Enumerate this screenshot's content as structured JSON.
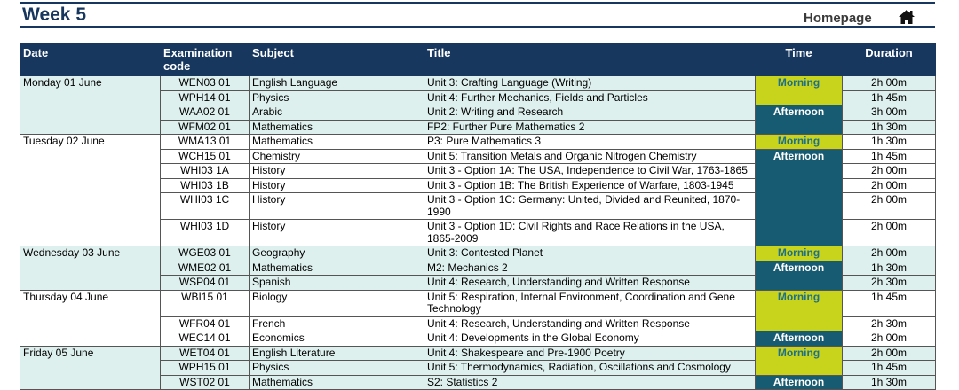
{
  "header": {
    "title": "Week 5",
    "link": "Homepage"
  },
  "table": {
    "columns": [
      "Date",
      "Examination code",
      "Subject",
      "Title",
      "Time",
      "Duration"
    ],
    "days": [
      {
        "date": "Monday 01 June",
        "sessions": [
          {
            "time": "Morning",
            "exams": [
              {
                "code": "WEN03 01",
                "subject": "English Language",
                "title": "Unit 3: Crafting Language (Writing)",
                "duration": "2h 00m"
              },
              {
                "code": "WPH14 01",
                "subject": "Physics",
                "title": "Unit 4: Further Mechanics, Fields and Particles",
                "duration": "1h 45m"
              }
            ]
          },
          {
            "time": "Afternoon",
            "exams": [
              {
                "code": "WAA02 01",
                "subject": "Arabic",
                "title": "Unit 2: Writing and Research",
                "duration": "3h 00m"
              },
              {
                "code": "WFM02 01",
                "subject": "Mathematics",
                "title": "FP2: Further Pure Mathematics 2",
                "duration": "1h 30m"
              }
            ]
          }
        ]
      },
      {
        "date": "Tuesday 02 June",
        "sessions": [
          {
            "time": "Morning",
            "exams": [
              {
                "code": "WMA13 01",
                "subject": "Mathematics",
                "title": "P3: Pure Mathematics 3",
                "duration": "1h 30m"
              }
            ]
          },
          {
            "time": "Afternoon",
            "exams": [
              {
                "code": "WCH15 01",
                "subject": "Chemistry",
                "title": "Unit 5: Transition Metals and Organic Nitrogen Chemistry",
                "duration": "1h 45m"
              },
              {
                "code": "WHI03 1A",
                "subject": "History",
                "title": "Unit 3 - Option 1A: The USA, Independence to Civil War, 1763-1865",
                "duration": "2h 00m"
              },
              {
                "code": "WHI03 1B",
                "subject": "History",
                "title": "Unit 3 - Option 1B: The British Experience of Warfare, 1803-1945",
                "duration": "2h 00m"
              },
              {
                "code": "WHI03 1C",
                "subject": "History",
                "title": "Unit 3 - Option 1C: Germany: United, Divided and Reunited, 1870-1990",
                "duration": "2h 00m"
              },
              {
                "code": "WHI03 1D",
                "subject": "History",
                "title": "Unit 3 - Option 1D: Civil Rights and Race Relations in the USA, 1865-2009",
                "duration": "2h 00m"
              }
            ]
          }
        ]
      },
      {
        "date": "Wednesday 03 June",
        "sessions": [
          {
            "time": "Morning",
            "exams": [
              {
                "code": "WGE03 01",
                "subject": "Geography",
                "title": "Unit 3: Contested Planet",
                "duration": "2h 00m"
              }
            ]
          },
          {
            "time": "Afternoon",
            "exams": [
              {
                "code": "WME02 01",
                "subject": "Mathematics",
                "title": "M2: Mechanics 2",
                "duration": "1h 30m"
              },
              {
                "code": "WSP04 01",
                "subject": "Spanish",
                "title": "Unit 4: Research, Understanding and Written Response",
                "duration": "2h 30m"
              }
            ]
          }
        ]
      },
      {
        "date": "Thursday 04 June",
        "sessions": [
          {
            "time": "Morning",
            "exams": [
              {
                "code": "WBI15 01",
                "subject": "Biology",
                "title": "Unit 5: Respiration, Internal Environment, Coordination and Gene Technology",
                "duration": "1h 45m"
              },
              {
                "code": "WFR04 01",
                "subject": "French",
                "title": "Unit 4: Research, Understanding and Written Response",
                "duration": "2h 30m"
              }
            ]
          },
          {
            "time": "Afternoon",
            "exams": [
              {
                "code": "WEC14 01",
                "subject": "Economics",
                "title": "Unit 4: Developments in the Global Economy",
                "duration": "2h 00m"
              }
            ]
          }
        ]
      },
      {
        "date": "Friday 05 June",
        "sessions": [
          {
            "time": "Morning",
            "exams": [
              {
                "code": "WET04 01",
                "subject": "English Literature",
                "title": "Unit 4: Shakespeare and Pre-1900 Poetry",
                "duration": "2h 00m"
              },
              {
                "code": "WPH15 01",
                "subject": "Physics",
                "title": "Unit 5: Thermodynamics, Radiation, Oscillations and Cosmology",
                "duration": "1h 45m"
              }
            ]
          },
          {
            "time": "Afternoon",
            "exams": [
              {
                "code": "WST02 01",
                "subject": "Mathematics",
                "title": "S2: Statistics 2",
                "duration": "1h 30m"
              }
            ]
          }
        ]
      }
    ]
  }
}
